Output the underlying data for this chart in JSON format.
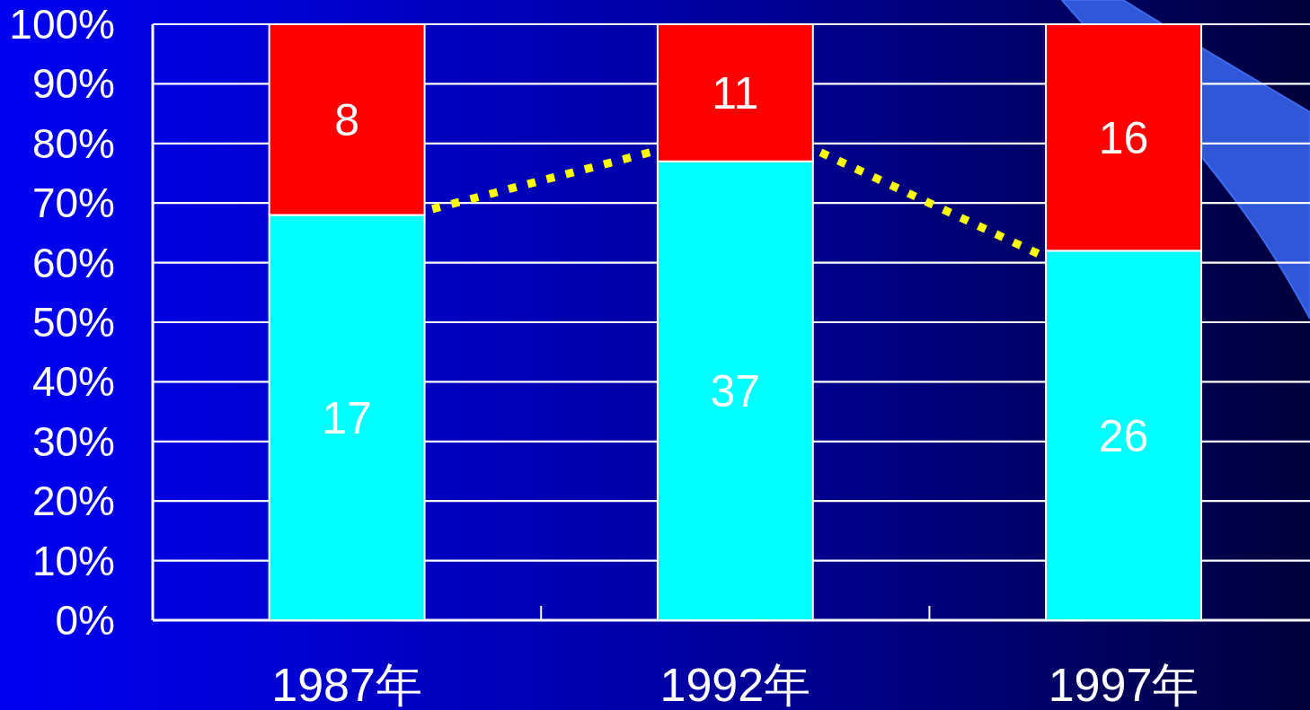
{
  "chart_data": {
    "type": "bar",
    "stacked": true,
    "x": [
      1987,
      1992,
      1997
    ],
    "series": [
      {
        "color": "#00ffff",
        "values": [
          68,
          77,
          62
        ]
      },
      {
        "color": "#ff0000",
        "values": [
          32,
          23,
          38
        ]
      },
      {
        "type": "line",
        "color": "#ffff00",
        "line_style": "dotted",
        "x": [
          1988.1,
          1990.9
        ],
        "values": [
          69,
          78.5
        ]
      },
      {
        "type": "line",
        "color": "#ffff00",
        "line_style": "dotted",
        "x": [
          1993.1,
          1995.9
        ],
        "values": [
          78.5,
          61.5
        ]
      }
    ],
    "annotations": [
      "17",
      "8",
      "37",
      "11",
      "26",
      "16"
    ],
    "xlim": [
      1984.5,
      1999.4
    ],
    "xticks": [
      {
        "value": 1987,
        "label": "1987年"
      },
      {
        "value": 1989.5,
        "label": null
      },
      {
        "value": 1992,
        "label": "1992年"
      },
      {
        "value": 1994.5,
        "label": null
      },
      {
        "value": 1997,
        "label": "1997年"
      }
    ],
    "ylim": [
      0,
      100
    ],
    "yticks": [
      {
        "value": 0,
        "label": "0%"
      },
      {
        "value": 10,
        "label": "10%"
      },
      {
        "value": 20,
        "label": "20%"
      },
      {
        "value": 30,
        "label": "30%"
      },
      {
        "value": 40,
        "label": "40%"
      },
      {
        "value": 50,
        "label": "50%"
      },
      {
        "value": 60,
        "label": "60%"
      },
      {
        "value": 70,
        "label": "70%"
      },
      {
        "value": 80,
        "label": "80%"
      },
      {
        "value": 90,
        "label": "90%"
      },
      {
        "value": 100,
        "label": "100%"
      }
    ],
    "grid": "y"
  }
}
